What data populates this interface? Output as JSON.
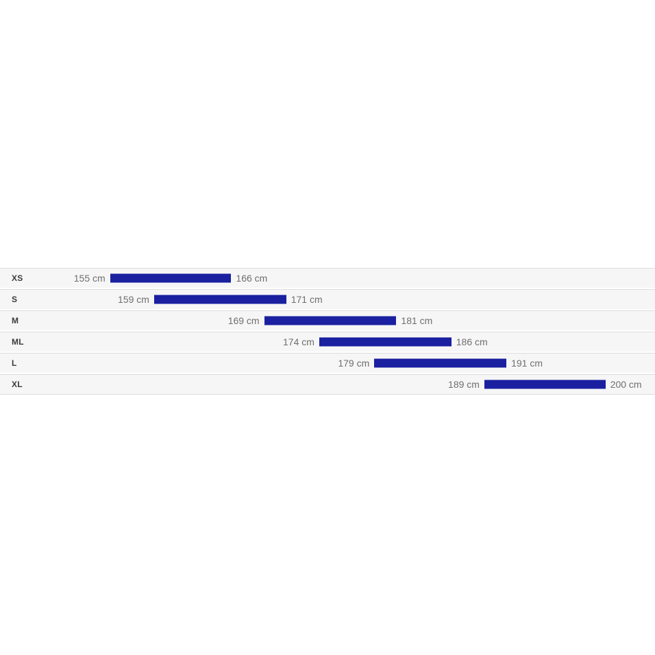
{
  "chart_data": {
    "type": "bar",
    "variant": "horizontal-range",
    "unit": "cm",
    "categories": [
      "XS",
      "S",
      "M",
      "ML",
      "L",
      "XL"
    ],
    "rows": [
      {
        "size": "XS",
        "min": 155,
        "max": 166,
        "min_label": "155 cm",
        "max_label": "166 cm"
      },
      {
        "size": "S",
        "min": 159,
        "max": 171,
        "min_label": "159 cm",
        "max_label": "171 cm"
      },
      {
        "size": "M",
        "min": 169,
        "max": 181,
        "min_label": "169 cm",
        "max_label": "181 cm"
      },
      {
        "size": "ML",
        "min": 174,
        "max": 186,
        "min_label": "174 cm",
        "max_label": "186 cm"
      },
      {
        "size": "L",
        "min": 179,
        "max": 191,
        "min_label": "179 cm",
        "max_label": "191 cm"
      },
      {
        "size": "XL",
        "min": 189,
        "max": 200,
        "min_label": "189 cm",
        "max_label": "200 cm"
      }
    ],
    "xlim": [
      145,
      204.5
    ],
    "grid": false,
    "legend": false,
    "colors": {
      "bar": "#1a20a0",
      "row_background": "#f6f6f6",
      "divider": "#dcdcdc",
      "value_label": "#6e6e6e",
      "size_label": "#3b3b3b",
      "page_background": "#ffffff"
    }
  }
}
